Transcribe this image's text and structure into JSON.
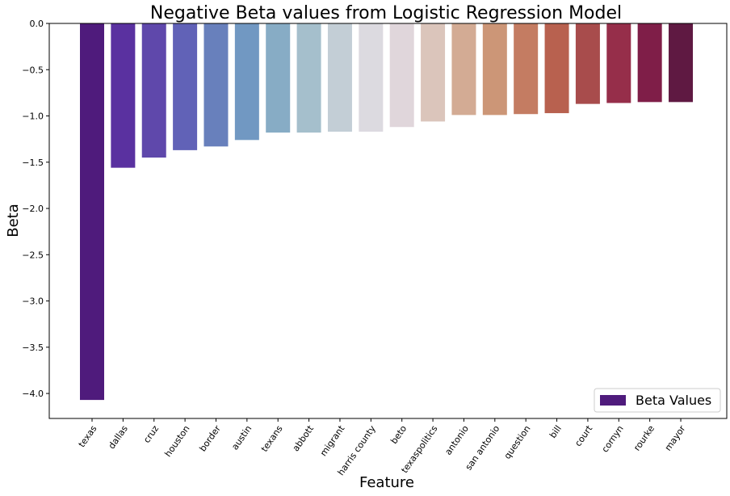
{
  "chart_data": {
    "type": "bar",
    "title": "Negative Beta values from Logistic Regression Model",
    "xlabel": "Feature",
    "ylabel": "Beta",
    "ylim": [
      -4.27,
      0.0
    ],
    "yticks": [
      0.0,
      -0.5,
      -1.0,
      -1.5,
      -2.0,
      -2.5,
      -3.0,
      -3.5,
      -4.0
    ],
    "ytick_labels": [
      "0.0",
      "−0.5",
      "−1.0",
      "−1.5",
      "−2.0",
      "−2.5",
      "−3.0",
      "−3.5",
      "−4.0"
    ],
    "grid": false,
    "legend": {
      "position": "bottom-right",
      "entries": [
        "Beta Values"
      ]
    },
    "categories": [
      "texas",
      "dallas",
      "cruz",
      "houston",
      "border",
      "austin",
      "texans",
      "abbott",
      "migrant",
      "harris county",
      "beto",
      "texaspolitics",
      "antonio",
      "san antonio",
      "question",
      "bill",
      "court",
      "cornyn",
      "rourke",
      "mayor"
    ],
    "series": [
      {
        "name": "Beta Values",
        "values": [
          -4.07,
          -1.56,
          -1.45,
          -1.37,
          -1.33,
          -1.26,
          -1.18,
          -1.18,
          -1.17,
          -1.17,
          -1.12,
          -1.06,
          -0.99,
          -0.99,
          -0.98,
          -0.97,
          -0.87,
          -0.86,
          -0.85,
          -0.85
        ]
      }
    ],
    "colors": [
      "#4f1b7c",
      "#5a31a0",
      "#5f48ab",
      "#6162b7",
      "#6880bc",
      "#7198c2",
      "#87acc5",
      "#a5bfcc",
      "#c3ced6",
      "#dcdae0",
      "#e0d6db",
      "#dbc5bb",
      "#d3ab94",
      "#cc9677",
      "#c47c62",
      "#b8614f",
      "#a84c4c",
      "#962e4a",
      "#7f1e48",
      "#5f1942"
    ]
  }
}
